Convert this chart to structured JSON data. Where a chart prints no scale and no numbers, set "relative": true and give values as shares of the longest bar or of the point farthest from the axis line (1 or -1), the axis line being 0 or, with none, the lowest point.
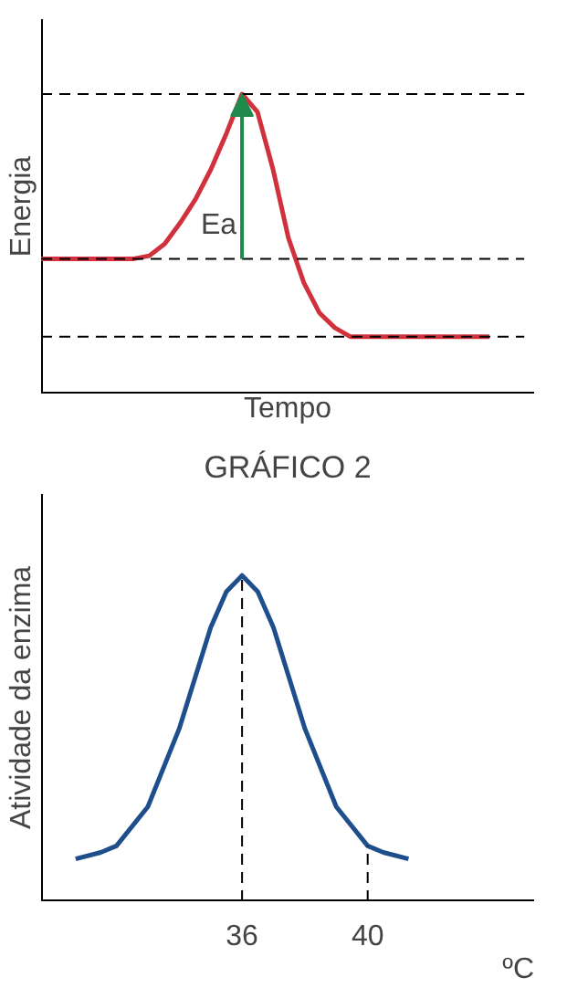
{
  "chart_data": [
    {
      "type": "line",
      "relative": true,
      "xlabel": "Tempo",
      "ylabel": "Energia",
      "categories": [
        null,
        null,
        null,
        null,
        null,
        null,
        null,
        null,
        null,
        null,
        null,
        null,
        null,
        null,
        null,
        null,
        null,
        null,
        null,
        null,
        null,
        null,
        null,
        null,
        null,
        null,
        null,
        null,
        null,
        null
      ],
      "series": [
        {
          "color": "#d0313c",
          "values": [
            0.45,
            0.45,
            0.45,
            0.45,
            0.45,
            0.45,
            0.45,
            0.46,
            0.5,
            0.57,
            0.65,
            0.75,
            0.87,
            1.0,
            0.94,
            0.75,
            0.52,
            0.37,
            0.27,
            0.22,
            0.19,
            0.19,
            0.19,
            0.19,
            0.19,
            0.19,
            0.19,
            0.19,
            0.19,
            0.19
          ]
        }
      ],
      "ref_lines": [
        {
          "axis": "y",
          "value": 1.0,
          "line_style": "dashed",
          "color": "#000000"
        },
        {
          "axis": "y",
          "value": 0.45,
          "line_style": "dashed",
          "color": "#000000"
        },
        {
          "axis": "y",
          "value": 0.19,
          "line_style": "dashed",
          "color": "#000000"
        }
      ],
      "annotations": [
        "Ea"
      ],
      "grid": false,
      "marker": "none",
      "line_style": "solid"
    },
    {
      "type": "line",
      "relative": true,
      "title": "GRÁFICO 2",
      "xlabel": "ºC",
      "ylabel": "Atividade da enzima",
      "xlim": [
        29.6,
        45.3
      ],
      "xticks": [
        36,
        40
      ],
      "series": [
        {
          "color": "#1f4e8c",
          "x": [
            30.7,
            31.5,
            32,
            33,
            34,
            35,
            35.5,
            36,
            36.5,
            37,
            38,
            39,
            40,
            40.5,
            41.3
          ],
          "values": [
            0.13,
            0.15,
            0.17,
            0.29,
            0.53,
            0.84,
            0.95,
            1.0,
            0.95,
            0.84,
            0.53,
            0.29,
            0.17,
            0.15,
            0.13
          ]
        }
      ],
      "ref_lines": [
        {
          "axis": "x",
          "value": 36,
          "line_style": "dashed",
          "color": "#000000"
        },
        {
          "axis": "x",
          "value": 40,
          "line_style": "dashed",
          "color": "#000000"
        }
      ],
      "grid": false,
      "marker": "none",
      "line_style": "solid"
    }
  ]
}
